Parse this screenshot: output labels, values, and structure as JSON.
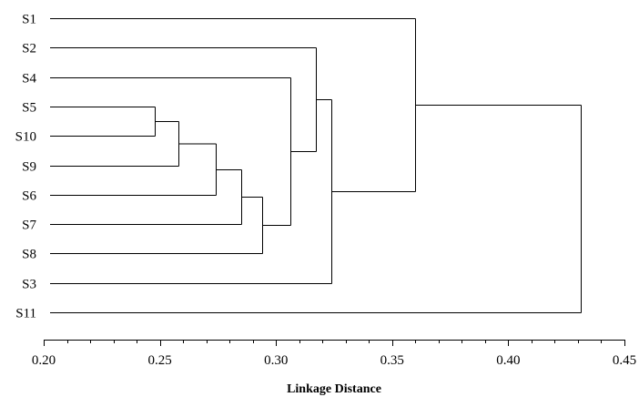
{
  "dendrogram": {
    "leaves": [
      "S1",
      "S2",
      "S4",
      "S5",
      "S10",
      "S9",
      "S6",
      "S7",
      "S8",
      "S3",
      "S11"
    ],
    "merges": [
      {
        "a": "S5",
        "b": "S10",
        "distance": 0.248,
        "id": "m1"
      },
      {
        "a": "m1",
        "b": "S9",
        "distance": 0.258,
        "id": "m2"
      },
      {
        "a": "m2",
        "b": "S6",
        "distance": 0.274,
        "id": "m3"
      },
      {
        "a": "m3",
        "b": "S7",
        "distance": 0.285,
        "id": "m4"
      },
      {
        "a": "m4",
        "b": "S8",
        "distance": 0.294,
        "id": "m5"
      },
      {
        "a": "S4",
        "b": "m5",
        "distance": 0.306,
        "id": "m6"
      },
      {
        "a": "S2",
        "b": "m6",
        "distance": 0.317,
        "id": "m7"
      },
      {
        "a": "m7",
        "b": "S3",
        "distance": 0.324,
        "id": "m8"
      },
      {
        "a": "S1",
        "b": "m8",
        "distance": 0.36,
        "id": "m9"
      },
      {
        "a": "m9",
        "b": "S11",
        "distance": 0.431,
        "id": "m10"
      }
    ]
  },
  "axis": {
    "xlabel": "Linkage Distance",
    "xlim": [
      0.2,
      0.45
    ],
    "major_ticks": [
      0.2,
      0.25,
      0.3,
      0.35,
      0.4,
      0.45
    ],
    "tick_labels": [
      "0.20",
      "0.25",
      "0.30",
      "0.35",
      "0.40",
      "0.45"
    ],
    "minor_step": 0.01
  }
}
